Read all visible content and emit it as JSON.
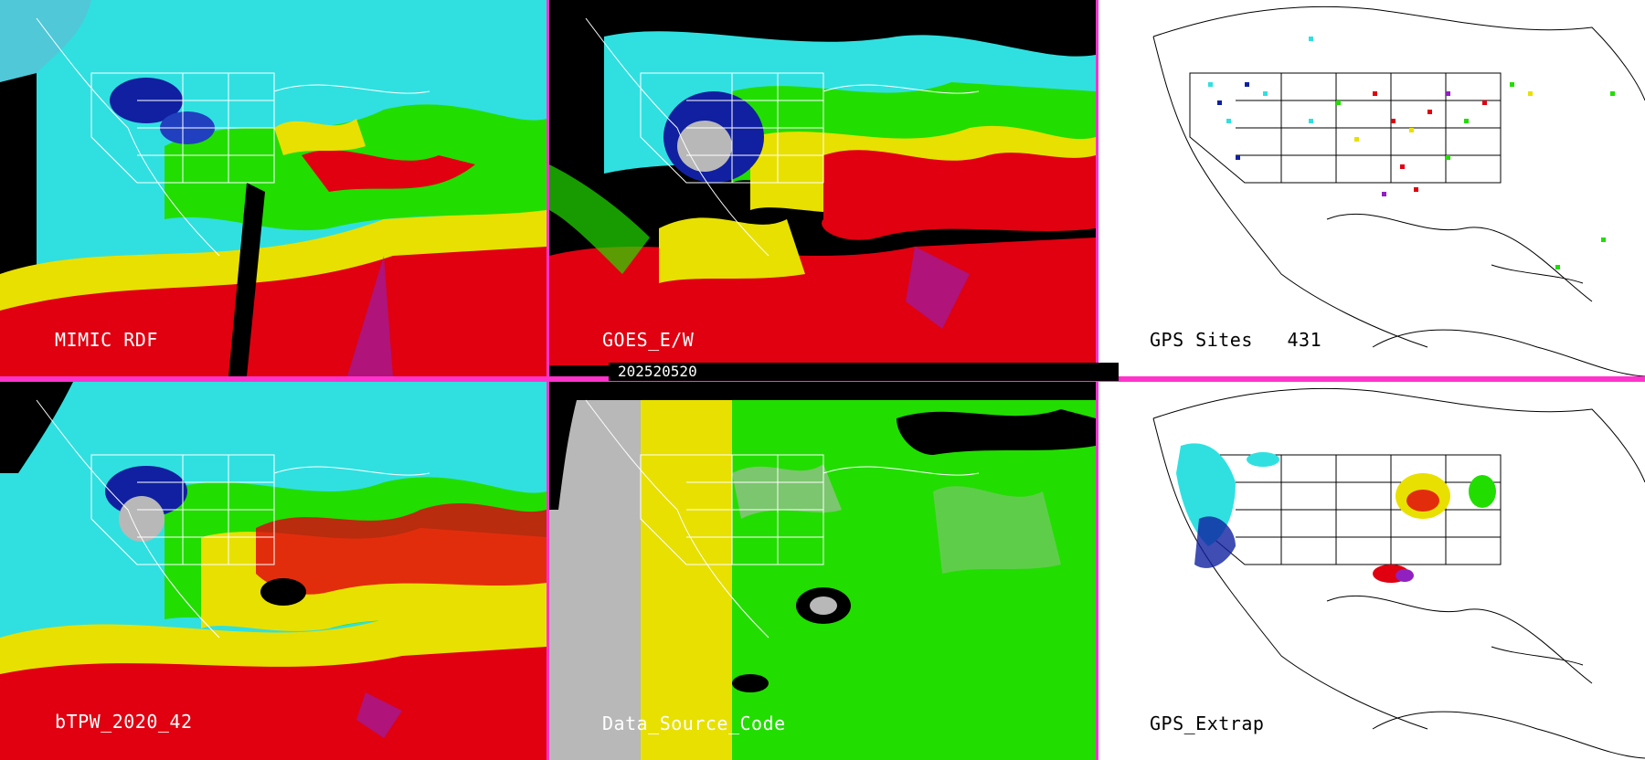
{
  "panels": {
    "mimic": {
      "label": "MIMIC RDF"
    },
    "goes": {
      "label": "GOES_E/W"
    },
    "gps_sites": {
      "label": "GPS Sites",
      "count": "431"
    },
    "btpw": {
      "label": "bTPW_2020_42"
    },
    "data_source": {
      "label": "Data_Source_Code"
    },
    "gps_extrap": {
      "label": "GPS_Extrap"
    }
  },
  "timestamp": "202520520",
  "colors": {
    "divider": "#ff33cc",
    "red": "#e00010",
    "yellow": "#e8e000",
    "green": "#22dd00",
    "cyan": "#30e0e0",
    "blue": "#1020a0",
    "purple": "#9020c0",
    "gray": "#b8b8b8"
  }
}
